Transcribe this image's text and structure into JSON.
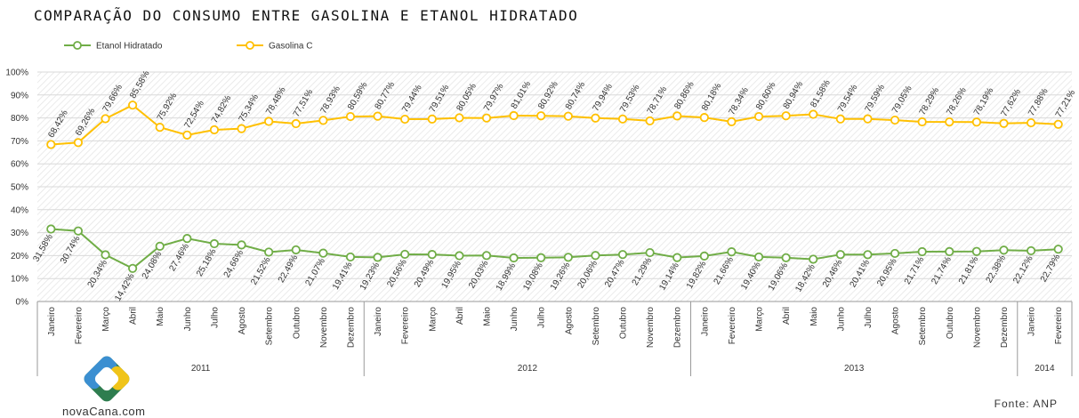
{
  "chart_data": {
    "type": "line",
    "title": "COMPARAÇÃO DO CONSUMO ENTRE GASOLINA E ETANOL HIDRATADO",
    "ylim": [
      0,
      100
    ],
    "yticks": [
      "0%",
      "10%",
      "20%",
      "30%",
      "40%",
      "50%",
      "60%",
      "70%",
      "80%",
      "90%",
      "100%"
    ],
    "categories": [
      "Janeiro",
      "Fevereiro",
      "Março",
      "Abril",
      "Maio",
      "Junho",
      "Julho",
      "Agosto",
      "Setembro",
      "Outubro",
      "Novembro",
      "Dezembro",
      "Janeiro",
      "Fevereiro",
      "Março",
      "Abril",
      "Maio",
      "Junho",
      "Julho",
      "Agosto",
      "Setembro",
      "Outubro",
      "Novembro",
      "Dezembro",
      "Janeiro",
      "Fevereiro",
      "Março",
      "Abril",
      "Maio",
      "Junho",
      "Julho",
      "Agosto",
      "Setembro",
      "Outubro",
      "Novembro",
      "Dezembro",
      "Janeiro",
      "Fevereiro"
    ],
    "years": [
      {
        "label": "2011",
        "count": 12
      },
      {
        "label": "2012",
        "count": 12
      },
      {
        "label": "2013",
        "count": 12
      },
      {
        "label": "2014",
        "count": 2
      }
    ],
    "legend_position": "top-left",
    "grid": true,
    "series": [
      {
        "name": "Etanol Hidratado",
        "color": "#70ad47",
        "values": [
          31.58,
          30.74,
          20.34,
          14.42,
          24.08,
          27.46,
          25.18,
          24.66,
          21.52,
          22.49,
          21.07,
          19.41,
          19.23,
          20.56,
          20.49,
          19.95,
          20.03,
          18.99,
          19.08,
          19.26,
          20.06,
          20.47,
          21.29,
          19.14,
          19.82,
          21.66,
          19.4,
          19.06,
          18.42,
          20.46,
          20.41,
          20.95,
          21.71,
          21.74,
          21.81,
          22.38,
          22.12,
          22.79
        ],
        "labels": [
          "31,58%",
          "30,74%",
          "20,34%",
          "14,42%",
          "24,08%",
          "27,46%",
          "25,18%",
          "24,66%",
          "21,52%",
          "22,49%",
          "21,07%",
          "19,41%",
          "19,23%",
          "20,56%",
          "20,49%",
          "19,95%",
          "20,03%",
          "18,99%",
          "19,08%",
          "19,26%",
          "20,06%",
          "20,47%",
          "21,29%",
          "19,14%",
          "19,82%",
          "21,66%",
          "19,40%",
          "19,06%",
          "18,42%",
          "20,46%",
          "20,41%",
          "20,95%",
          "21,71%",
          "21,74%",
          "21,81%",
          "22,38%",
          "22,12%",
          "22,79%"
        ]
      },
      {
        "name": "Gasolina C",
        "color": "#ffc000",
        "values": [
          68.42,
          69.26,
          79.66,
          85.58,
          75.92,
          72.54,
          74.82,
          75.34,
          78.48,
          77.51,
          78.93,
          80.59,
          80.77,
          79.44,
          79.51,
          80.05,
          79.97,
          81.01,
          80.92,
          80.74,
          79.94,
          79.53,
          78.71,
          80.86,
          80.18,
          78.34,
          80.6,
          80.94,
          81.58,
          79.54,
          79.59,
          79.05,
          78.29,
          78.26,
          78.19,
          77.62,
          77.88,
          77.21
        ],
        "labels": [
          "68,42%",
          "69,26%",
          "79,66%",
          "85,58%",
          "75,92%",
          "72,54%",
          "74,82%",
          "75,34%",
          "78,48%",
          "77,51%",
          "78,93%",
          "80,59%",
          "80,77%",
          "79,44%",
          "79,51%",
          "80,05%",
          "79,97%",
          "81,01%",
          "80,92%",
          "80,74%",
          "79,94%",
          "79,53%",
          "78,71%",
          "80,86%",
          "80,18%",
          "78,34%",
          "80,60%",
          "80,94%",
          "81,58%",
          "79,54%",
          "79,59%",
          "79,05%",
          "78,29%",
          "78,26%",
          "78,19%",
          "77,62%",
          "77,88%",
          "77,21%"
        ]
      }
    ]
  },
  "source": "Fonte: ANP",
  "logo_text": "novaCana.com",
  "colors": {
    "grid": "#d9d9d9",
    "axis": "#9a9a9a",
    "hatch": "#e3e3e3"
  }
}
